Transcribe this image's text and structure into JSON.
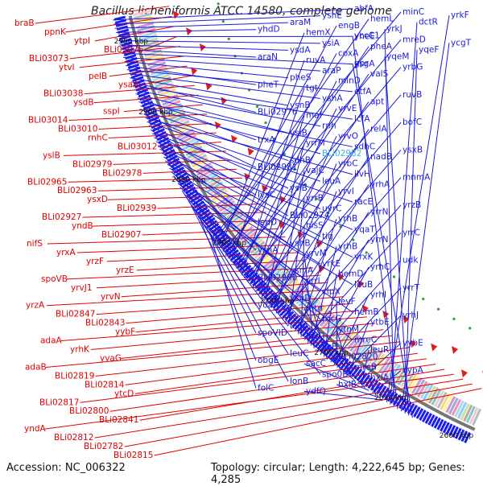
{
  "title": "Bacillus licheniformis ATCC 14580, complete genome",
  "footer": {
    "accession": "Accession: NC_006322",
    "stats": "Topology: circular; Length: 4,222,645 bp; Genes: 4,285"
  },
  "scale_labels": [
    "2950 kbp",
    "2900 kbp",
    "2850 kbp",
    "2800 kbp",
    "2750 kbp",
    "2700 kbp",
    "2650 kbp",
    "2600 kbp"
  ],
  "highlight_label": "BLi02982",
  "colors": {
    "forward_strand_labels": "#1a1adc",
    "reverse_strand_labels": "#e00000",
    "highlight": "#3db3e6",
    "backbone": "#777777",
    "inner_marks": "#2aa02a"
  },
  "left_labels": [
    "braB",
    "ppnK",
    "ytpI",
    "BLi03075",
    "BLi03073",
    "ytvI",
    "pelB",
    "ysaA",
    "BLi03038",
    "ysdB",
    "sspI",
    "BLi03014",
    "BLi03010",
    "rnhC",
    "BLi03012",
    "yslB",
    "BLi02979",
    "BLi02978",
    "BLi02965",
    "BLi02963",
    "ysxD",
    "BLi02939",
    "BLi02927",
    "yndB",
    "BLi02907",
    "nifS",
    "yrxA",
    "yrzF",
    "yrzE",
    "spoVB",
    "yrvJ1",
    "yrvN",
    "yrzA",
    "BLi02847",
    "BLi02843",
    "yybF",
    "adaA",
    "yrhK",
    "yvaG",
    "adaB",
    "BLi02819",
    "BLi02814",
    "ytcD",
    "BLi02817",
    "BLi02800",
    "BLi02841",
    "yndA",
    "BLi02812",
    "BLi02782",
    "BLi02815"
  ],
  "right_labels": [
    "abfA",
    "yshE",
    "araM",
    "yhdD",
    "yheE",
    "ysiA",
    "ysdA",
    "araN",
    "ysgA",
    "araP",
    "pheS",
    "pheT",
    "etfA",
    "yshA",
    "ysnB",
    "BLi02976",
    "lcfA",
    "rph",
    "ysiB",
    "trxA",
    "sdhC",
    "BLi02982",
    "sdhB",
    "BLi02981",
    "ilvH",
    "leuA",
    "ysiB",
    "lysC",
    "racE",
    "uvrC",
    "BLi02974",
    "leuD",
    "yqaT",
    "tig",
    "yshB",
    "ysnA",
    "yrxK",
    "yrkE",
    "ysmA",
    "BLi02980",
    "leuB",
    "clpX",
    "yshD",
    "yoaA",
    "hemB",
    "rocG",
    "lonA",
    "spoVID",
    "mreC",
    "ilvB",
    "leuC",
    "obgE",
    "mreB",
    "spo0B",
    "lonB",
    "folC",
    "minC",
    "hemL",
    "engB",
    "hemX",
    "mreD",
    "pheA",
    "coxA",
    "ruvA",
    "yrbG",
    "valS",
    "minD",
    "tgt",
    "ruvB",
    "apt",
    "yrvE",
    "maf",
    "bofC",
    "relA",
    "yrvO",
    "yrrM",
    "ysxB",
    "nadB",
    "yrbC",
    "vajC",
    "mnmA",
    "yrhA",
    "yrvI",
    "yrrB",
    "yrzB",
    "yrrN",
    "yrhB",
    "hisS",
    "yrrC",
    "yrrN",
    "yrhB",
    "yrvM",
    "udk",
    "yrhC",
    "hemD",
    "yrrL",
    "yrrT",
    "yrhI",
    "levF",
    "mtn",
    "yrhJ",
    "ytbE",
    "ytnM",
    "levG",
    "yybE",
    "leuR",
    "BLi02820",
    "sacC",
    "cypA",
    "hxlA",
    "hxlB",
    "ydfQ",
    "yrkF",
    "dctR",
    "yrkJ",
    "yccC1",
    "ycgT",
    "yqeF",
    "yqeM",
    "gpr"
  ]
}
